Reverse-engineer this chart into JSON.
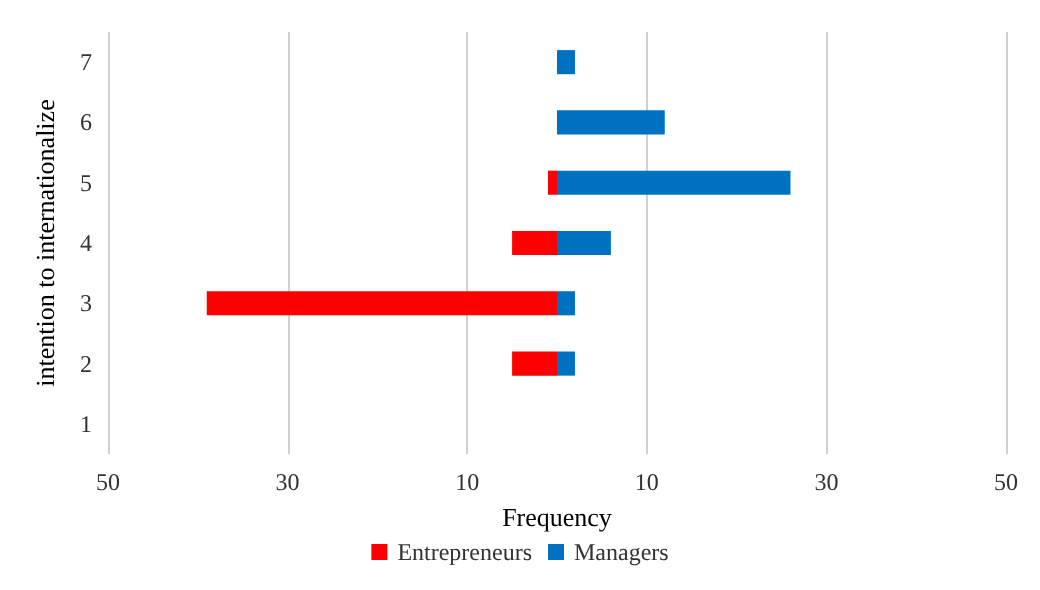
{
  "chart_data": {
    "type": "bar",
    "orientation": "horizontal",
    "stacked": true,
    "xlabel": "Frequency",
    "ylabel": "intention to internationalize",
    "categories": [
      "7",
      "6",
      "5",
      "4",
      "3",
      "2",
      "1"
    ],
    "series": [
      {
        "name": "Entrepreneurs",
        "color": "#ff0000",
        "values": [
          0,
          0,
          -1,
          -5,
          -39,
          -5,
          0
        ]
      },
      {
        "name": "Managers",
        "color": "#0070c0",
        "values": [
          2,
          12,
          26,
          6,
          2,
          2,
          0
        ]
      }
    ],
    "xlim": [
      -50,
      50
    ],
    "xticks": [
      {
        "value": -50,
        "label": "50"
      },
      {
        "value": -30,
        "label": "30"
      },
      {
        "value": -10,
        "label": "10"
      },
      10,
      30,
      50
    ],
    "grid": "x",
    "legend": "bottom"
  }
}
